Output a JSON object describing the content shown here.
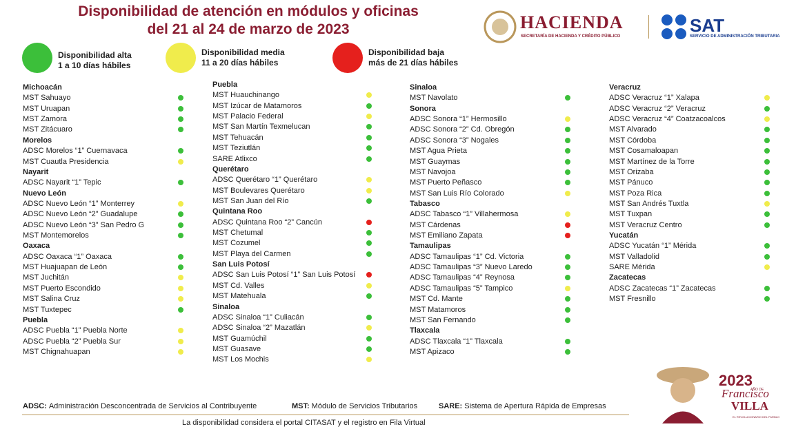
{
  "header": {
    "title_line1": "Disponibilidad de atención en módulos y oficinas",
    "title_line2": "del 21  al 24 de marzo de 2023",
    "hacienda": "HACIENDA",
    "hacienda_sub": "SECRETARÍA DE HACIENDA Y CRÉDITO PÚBLICO",
    "sat": "SAT",
    "sat_sub": "SERVICIO DE ADMINISTRACIÓN TRIBUTARIA"
  },
  "legend": [
    {
      "color": "#3cbf3a",
      "title": "Disponibilidad alta",
      "subtitle": "1 a 10 días hábiles"
    },
    {
      "color": "#f0ec4c",
      "title": "Disponibilidad media",
      "subtitle": "11 a 20 días hábiles"
    },
    {
      "color": "#e5201d",
      "title": "Disponibilidad baja",
      "subtitle": "más de 21 días hábiles"
    }
  ],
  "columns": [
    {
      "groups": [
        {
          "state": "Michoacán",
          "offices": [
            {
              "name": "MST Sahuayo",
              "color": "#3cbf3a"
            },
            {
              "name": "MST Uruapan",
              "color": "#3cbf3a"
            },
            {
              "name": "MST Zamora",
              "color": "#3cbf3a"
            },
            {
              "name": "MST Zitácuaro",
              "color": "#3cbf3a"
            }
          ]
        },
        {
          "state": "Morelos",
          "offices": [
            {
              "name": "ADSC Morelos “1” Cuernavaca",
              "color": "#3cbf3a"
            },
            {
              "name": "MST Cuautla Presidencia",
              "color": "#f0ec4c"
            }
          ]
        },
        {
          "state": "Nayarit",
          "offices": [
            {
              "name": "ADSC Nayarit “1” Tepic",
              "color": "#3cbf3a"
            }
          ]
        },
        {
          "state": "Nuevo León",
          "offices": [
            {
              "name": "ADSC Nuevo León “1” Monterrey",
              "color": "#f0ec4c"
            },
            {
              "name": "ADSC Nuevo León “2” Guadalupe",
              "color": "#3cbf3a"
            },
            {
              "name": "ADSC Nuevo León “3” San Pedro G",
              "color": "#3cbf3a"
            },
            {
              "name": "MST Montemorelos",
              "color": "#3cbf3a"
            }
          ]
        },
        {
          "state": "Oaxaca",
          "offices": [
            {
              "name": "ADSC Oaxaca “1” Oaxaca",
              "color": "#3cbf3a"
            },
            {
              "name": "MST Huajuapan de León",
              "color": "#3cbf3a"
            },
            {
              "name": "MST Juchitán",
              "color": "#f0ec4c"
            },
            {
              "name": "MST Puerto Escondido",
              "color": "#f0ec4c"
            },
            {
              "name": "MST Salina Cruz",
              "color": "#f0ec4c"
            },
            {
              "name": "MST Tuxtepec",
              "color": "#3cbf3a"
            }
          ]
        },
        {
          "state": "Puebla",
          "offices": [
            {
              "name": "ADSC Puebla “1” Puebla Norte",
              "color": "#f0ec4c"
            },
            {
              "name": "ADSC Puebla “2” Puebla Sur",
              "color": "#f0ec4c"
            },
            {
              "name": "MST Chignahuapan",
              "color": "#f0ec4c"
            }
          ]
        }
      ]
    },
    {
      "groups": [
        {
          "state": "Puebla",
          "offices": [
            {
              "name": "MST Huauchinango",
              "color": "#f0ec4c"
            },
            {
              "name": "MST Izúcar de Matamoros",
              "color": "#3cbf3a"
            },
            {
              "name": "MST Palacio Federal",
              "color": "#f0ec4c"
            },
            {
              "name": "MST San Martín Texmelucan",
              "color": "#3cbf3a"
            },
            {
              "name": "MST Tehuacán",
              "color": "#3cbf3a"
            },
            {
              "name": "MST Teziutlán",
              "color": "#3cbf3a"
            },
            {
              "name": "SARE Atlixco",
              "color": "#3cbf3a"
            }
          ]
        },
        {
          "state": "Querétaro",
          "offices": [
            {
              "name": "ADSC Querétaro “1” Querétaro",
              "color": "#f0ec4c"
            },
            {
              "name": "MST Boulevares Querétaro",
              "color": "#f0ec4c"
            },
            {
              "name": "MST San Juan del Río",
              "color": "#3cbf3a"
            }
          ]
        },
        {
          "state": "Quintana Roo",
          "offices": [
            {
              "name": "ADSC Quintana Roo “2” Cancún",
              "color": "#e5201d"
            },
            {
              "name": "MST Chetumal",
              "color": "#3cbf3a"
            },
            {
              "name": "MST Cozumel",
              "color": "#3cbf3a"
            },
            {
              "name": "MST Playa del Carmen",
              "color": "#3cbf3a"
            }
          ]
        },
        {
          "state": "San Luis Potosí",
          "offices": [
            {
              "name": "ADSC San Luis Potosí “1” San Luis Potosí",
              "color": "#e5201d"
            },
            {
              "name": "MST Cd. Valles",
              "color": "#f0ec4c"
            },
            {
              "name": "MST Matehuala",
              "color": "#3cbf3a"
            }
          ]
        },
        {
          "state": "Sinaloa",
          "offices": [
            {
              "name": "ADSC Sinaloa “1” Culiacán",
              "color": "#3cbf3a"
            },
            {
              "name": "ADSC Sinaloa “2” Mazatlán",
              "color": "#f0ec4c"
            },
            {
              "name": "MST Guamúchil",
              "color": "#3cbf3a"
            },
            {
              "name": "MST Guasave",
              "color": "#3cbf3a"
            },
            {
              "name": "MST Los Mochis",
              "color": "#f0ec4c"
            }
          ]
        }
      ]
    },
    {
      "groups": [
        {
          "state": "Sinaloa",
          "offices": [
            {
              "name": "MST Navolato",
              "color": "#3cbf3a"
            }
          ]
        },
        {
          "state": "Sonora",
          "offices": [
            {
              "name": "ADSC Sonora “1” Hermosillo",
              "color": "#f0ec4c"
            },
            {
              "name": "ADSC Sonora “2” Cd. Obregón",
              "color": "#3cbf3a"
            },
            {
              "name": "ADSC Sonora “3” Nogales",
              "color": "#3cbf3a"
            },
            {
              "name": "MST Agua Prieta",
              "color": "#3cbf3a"
            },
            {
              "name": "MST Guaymas",
              "color": "#3cbf3a"
            },
            {
              "name": "MST Navojoa",
              "color": "#3cbf3a"
            },
            {
              "name": "MST Puerto Peñasco",
              "color": "#3cbf3a"
            },
            {
              "name": "MST San Luis Río Colorado",
              "color": "#f0ec4c"
            }
          ]
        },
        {
          "state": "Tabasco",
          "offices": [
            {
              "name": "ADSC Tabasco “1” Villahermosa",
              "color": "#f0ec4c"
            },
            {
              "name": "MST Cárdenas",
              "color": "#e5201d"
            },
            {
              "name": "MST Emiliano Zapata",
              "color": "#e5201d"
            }
          ]
        },
        {
          "state": "Tamaulipas",
          "offices": [
            {
              "name": "ADSC Tamaulipas “1” Cd. Victoria",
              "color": "#3cbf3a"
            },
            {
              "name": "ADSC Tamaulipas “3” Nuevo Laredo",
              "color": "#3cbf3a"
            },
            {
              "name": "ADSC Tamaulipas “4” Reynosa",
              "color": "#3cbf3a"
            },
            {
              "name": "ADSC Tamaulipas “5” Tampico",
              "color": "#f0ec4c"
            },
            {
              "name": "MST Cd. Mante",
              "color": "#3cbf3a"
            },
            {
              "name": "MST Matamoros",
              "color": "#3cbf3a"
            },
            {
              "name": "MST San Fernando",
              "color": "#3cbf3a"
            }
          ]
        },
        {
          "state": "Tlaxcala",
          "offices": [
            {
              "name": "ADSC Tlaxcala “1” Tlaxcala",
              "color": "#3cbf3a"
            },
            {
              "name": "MST Apizaco",
              "color": "#3cbf3a"
            }
          ]
        }
      ]
    },
    {
      "groups": [
        {
          "state": "Veracruz",
          "offices": [
            {
              "name": "ADSC Veracruz “1” Xalapa",
              "color": "#f0ec4c"
            },
            {
              "name": "ADSC Veracruz “2” Veracruz",
              "color": "#3cbf3a"
            },
            {
              "name": "ADSC Veracruz “4” Coatzacoalcos",
              "color": "#f0ec4c"
            },
            {
              "name": "MST Alvarado",
              "color": "#3cbf3a"
            },
            {
              "name": "MST Córdoba",
              "color": "#3cbf3a"
            },
            {
              "name": "MST Cosamaloapan",
              "color": "#3cbf3a"
            },
            {
              "name": "MST Martínez de la Torre",
              "color": "#3cbf3a"
            },
            {
              "name": "MST Orizaba",
              "color": "#3cbf3a"
            },
            {
              "name": "MST Pánuco",
              "color": "#3cbf3a"
            },
            {
              "name": "MST Poza Rica",
              "color": "#3cbf3a"
            },
            {
              "name": "MST San Andrés Tuxtla",
              "color": "#f0ec4c"
            },
            {
              "name": "MST Tuxpan",
              "color": "#3cbf3a"
            },
            {
              "name": "MST Veracruz Centro",
              "color": "#3cbf3a"
            }
          ]
        },
        {
          "state": "Yucatán",
          "offices": [
            {
              "name": "ADSC Yucatán “1” Mérida",
              "color": "#3cbf3a"
            },
            {
              "name": "MST Valladolid",
              "color": "#3cbf3a"
            },
            {
              "name": "SARE Mérida",
              "color": "#f0ec4c"
            }
          ]
        },
        {
          "state": "Zacatecas",
          "offices": [
            {
              "name": "ADSC Zacatecas “1” Zacatecas",
              "color": "#3cbf3a"
            },
            {
              "name": "MST Fresnillo",
              "color": "#3cbf3a"
            }
          ]
        }
      ]
    }
  ],
  "footer": {
    "defs": [
      {
        "abbr": "ADSC:",
        "text": "Administración Desconcentrada de Servicios al Contribuyente"
      },
      {
        "abbr": "MST:",
        "text": "Módulo de Servicios Tributarios"
      },
      {
        "abbr": "SARE:",
        "text": "Sistema de Apertura Rápida de Empresas"
      }
    ],
    "note": "La disponibilidad considera el portal CITASAT y el registro en Fila Virtual"
  },
  "badge": {
    "year": "2023",
    "year_sub": "AÑO DE",
    "name1": "Francisco",
    "name2": "VILLA",
    "tagline": "EL REVOLUCIONARIO DEL PUEBLO"
  }
}
